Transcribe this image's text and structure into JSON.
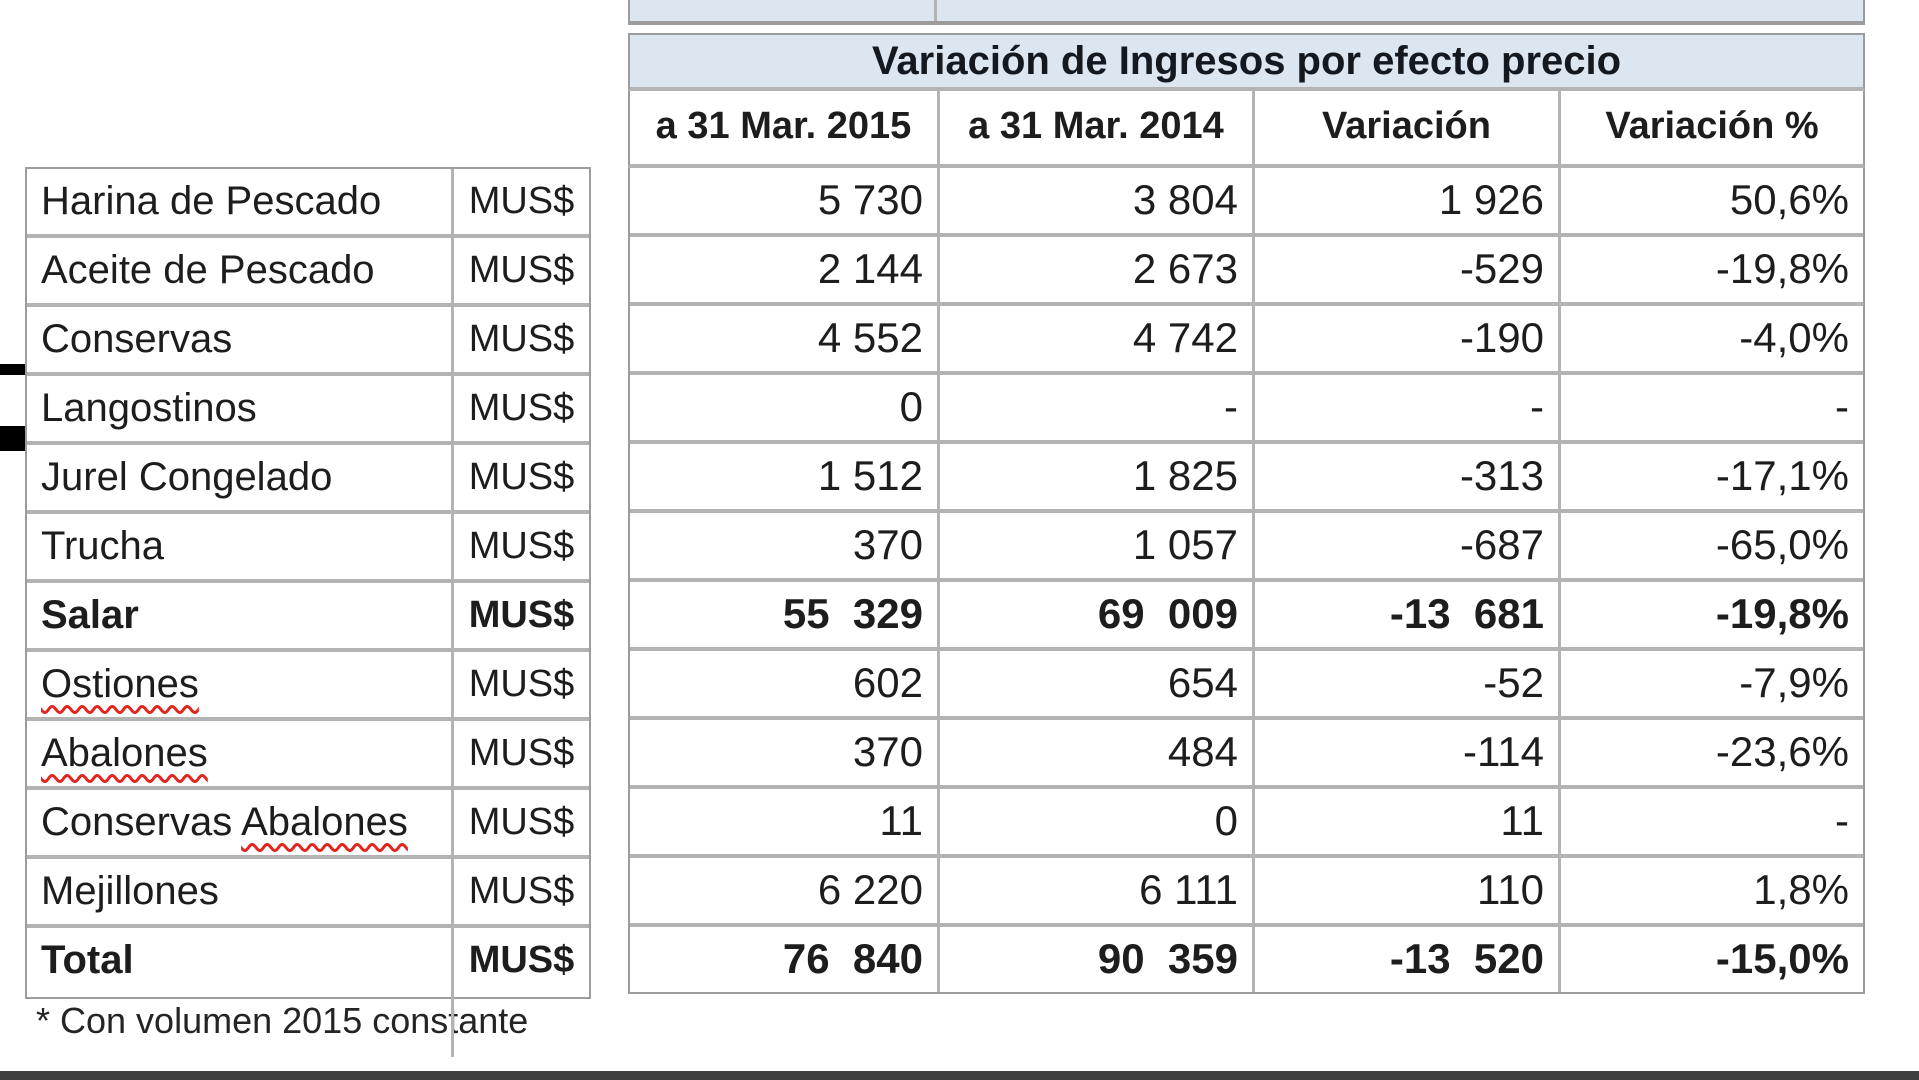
{
  "title": "Variación de Ingresos por efecto precio",
  "columns": [
    "a 31 Mar. 2015",
    "a 31 Mar. 2014",
    "Variación",
    "Variación %"
  ],
  "rows": [
    {
      "name": "Harina de Pescado",
      "unit": "MUS$",
      "y2015": "5 730",
      "y2014": "3 804",
      "variation": "1 926",
      "variation_pct": "50,6%"
    },
    {
      "name": "Aceite de Pescado",
      "unit": "MUS$",
      "y2015": "2 144",
      "y2014": "2 673",
      "variation": "-529",
      "variation_pct": "-19,8%"
    },
    {
      "name": "Conservas",
      "unit": "MUS$",
      "y2015": "4 552",
      "y2014": "4 742",
      "variation": "-190",
      "variation_pct": "-4,0%"
    },
    {
      "name": "Langostinos",
      "unit": "MUS$",
      "y2015": "0",
      "y2014": "-",
      "variation": "-",
      "variation_pct": "-"
    },
    {
      "name": "Jurel Congelado",
      "unit": "MUS$",
      "y2015": "1 512",
      "y2014": "1 825",
      "variation": "-313",
      "variation_pct": "-17,1%"
    },
    {
      "name": "Trucha",
      "unit": "MUS$",
      "y2015": "370",
      "y2014": "1 057",
      "variation": "-687",
      "variation_pct": "-65,0%"
    },
    {
      "name": "Salar",
      "unit": "MUS$",
      "y2015": "55  329",
      "y2014": "69  009",
      "variation": "-13  681",
      "variation_pct": "-19,8%",
      "bold": true
    },
    {
      "name": "Ostiones",
      "unit": "MUS$",
      "y2015": "602",
      "y2014": "654",
      "variation": "-52",
      "variation_pct": "-7,9%",
      "misspelled": "Ostiones"
    },
    {
      "name": "Abalones",
      "unit": "MUS$",
      "y2015": "370",
      "y2014": "484",
      "variation": "-114",
      "variation_pct": "-23,6%",
      "misspelled": "Abalones"
    },
    {
      "name": "Conservas Abalones",
      "unit": "MUS$",
      "y2015": "11",
      "y2014": "0",
      "variation": "11",
      "variation_pct": "-",
      "misspelled": "Abalones"
    },
    {
      "name": "Mejillones",
      "unit": "MUS$",
      "y2015": "6 220",
      "y2014": "6 111",
      "variation": "110",
      "variation_pct": "1,8%"
    },
    {
      "name": "Total",
      "unit": "MUS$",
      "y2015": "76  840",
      "y2014": "90  359",
      "variation": "-13  520",
      "variation_pct": "-15,0%",
      "bold": true
    }
  ],
  "footnote": "* Con volumen 2015 constante",
  "colors": {
    "band_blue": "#dce6f1",
    "grid": "#b3b3b3",
    "outer_border": "#9c9c9c",
    "text": "#1d1d1d",
    "squiggle_red": "#e2251f",
    "bottom_bar": "#3f3f3f",
    "black_shape": "#000000"
  }
}
